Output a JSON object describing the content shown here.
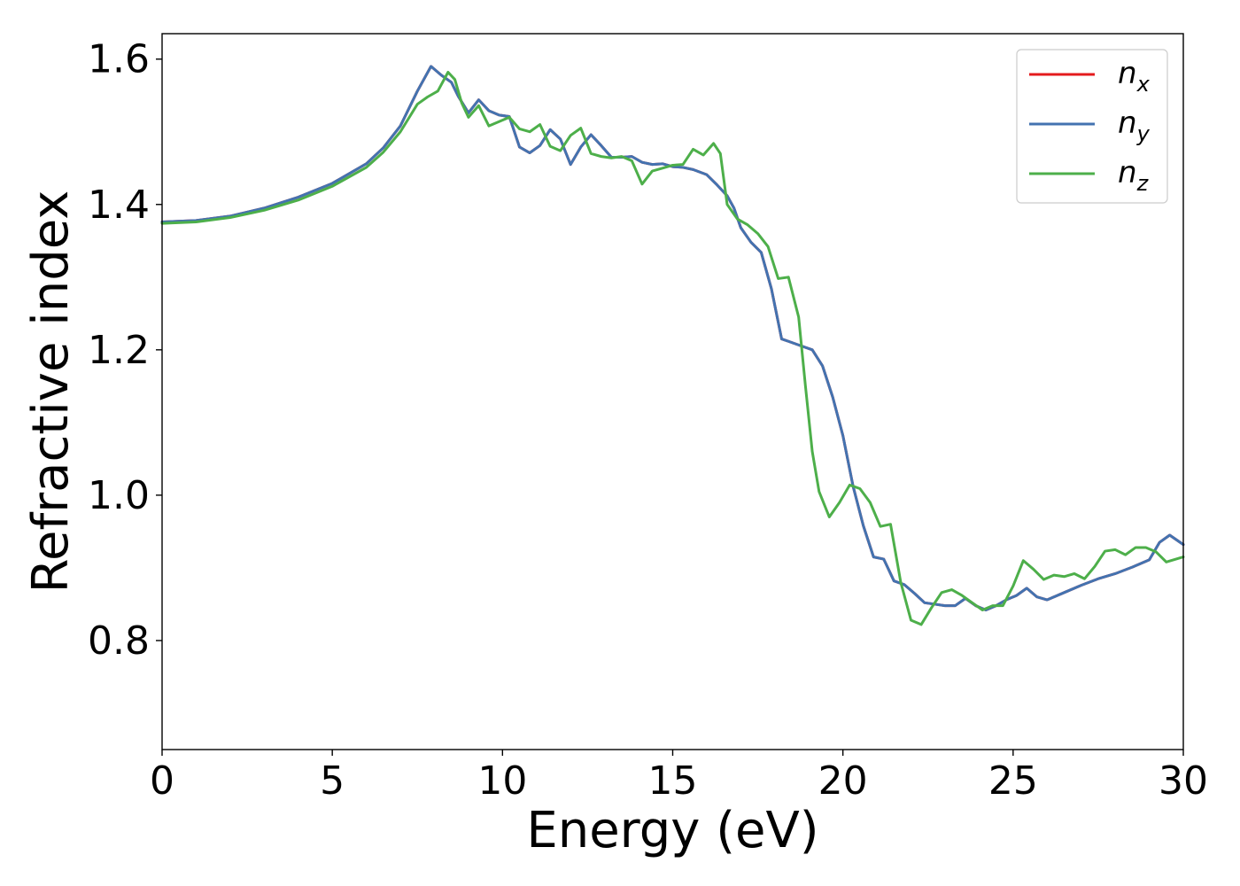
{
  "chart_data": {
    "type": "line",
    "title": "",
    "xlabel": "Energy (eV)",
    "ylabel": "Refractive index",
    "xlim": [
      0,
      30
    ],
    "ylim": [
      0.65,
      1.635
    ],
    "xticks": [
      0,
      5,
      10,
      15,
      20,
      25,
      30
    ],
    "yticks": [
      0.8,
      1.0,
      1.2,
      1.4,
      1.6
    ],
    "xtick_labels": [
      "0",
      "5",
      "10",
      "15",
      "20",
      "25",
      "30"
    ],
    "ytick_labels": [
      "0.8",
      "1.0",
      "1.2",
      "1.4",
      "1.6"
    ],
    "grid": false,
    "legend_position": "top-right",
    "series": [
      {
        "name": "n_x",
        "legend_base": "n",
        "legend_sub": "x",
        "color": "#e41a1c",
        "x": [
          0,
          1,
          2,
          3,
          4,
          5,
          6,
          6.5,
          7,
          7.5,
          7.9,
          8.2,
          8.5,
          8.7,
          9.0,
          9.3,
          9.6,
          9.9,
          10.2,
          10.5,
          10.8,
          11.1,
          11.4,
          11.7,
          12.0,
          12.3,
          12.6,
          12.9,
          13.2,
          13.5,
          13.8,
          14.1,
          14.4,
          14.7,
          15.0,
          15.3,
          15.6,
          16.0,
          16.3,
          16.6,
          16.8,
          17.0,
          17.3,
          17.6,
          17.9,
          18.2,
          18.5,
          18.8,
          19.1,
          19.4,
          19.7,
          20.0,
          20.3,
          20.6,
          20.9,
          21.2,
          21.5,
          21.8,
          22.1,
          22.4,
          22.7,
          23.0,
          23.3,
          23.6,
          23.9,
          24.2,
          24.5,
          24.8,
          25.1,
          25.4,
          25.7,
          26.0,
          26.5,
          27.0,
          27.5,
          28.0,
          28.5,
          29.0,
          29.3,
          29.6,
          30.0
        ],
        "y": [
          1.376,
          1.378,
          1.384,
          1.395,
          1.41,
          1.429,
          1.456,
          1.478,
          1.508,
          1.556,
          1.59,
          1.578,
          1.568,
          1.549,
          1.526,
          1.544,
          1.529,
          1.523,
          1.521,
          1.479,
          1.471,
          1.481,
          1.503,
          1.49,
          1.455,
          1.479,
          1.496,
          1.481,
          1.465,
          1.465,
          1.466,
          1.458,
          1.455,
          1.456,
          1.452,
          1.451,
          1.448,
          1.441,
          1.427,
          1.412,
          1.395,
          1.368,
          1.348,
          1.334,
          1.284,
          1.215,
          1.21,
          1.205,
          1.2,
          1.178,
          1.135,
          1.082,
          1.012,
          0.958,
          0.915,
          0.912,
          0.882,
          0.877,
          0.865,
          0.852,
          0.85,
          0.848,
          0.848,
          0.858,
          0.848,
          0.842,
          0.848,
          0.856,
          0.862,
          0.872,
          0.86,
          0.856,
          0.866,
          0.876,
          0.885,
          0.892,
          0.901,
          0.911,
          0.935,
          0.945,
          0.932
        ]
      },
      {
        "name": "n_y",
        "legend_base": "n",
        "legend_sub": "y",
        "color": "#4373b0",
        "x": [
          0,
          1,
          2,
          3,
          4,
          5,
          6,
          6.5,
          7,
          7.5,
          7.9,
          8.2,
          8.5,
          8.7,
          9.0,
          9.3,
          9.6,
          9.9,
          10.2,
          10.5,
          10.8,
          11.1,
          11.4,
          11.7,
          12.0,
          12.3,
          12.6,
          12.9,
          13.2,
          13.5,
          13.8,
          14.1,
          14.4,
          14.7,
          15.0,
          15.3,
          15.6,
          16.0,
          16.3,
          16.6,
          16.8,
          17.0,
          17.3,
          17.6,
          17.9,
          18.2,
          18.5,
          18.8,
          19.1,
          19.4,
          19.7,
          20.0,
          20.3,
          20.6,
          20.9,
          21.2,
          21.5,
          21.8,
          22.1,
          22.4,
          22.7,
          23.0,
          23.3,
          23.6,
          23.9,
          24.2,
          24.5,
          24.8,
          25.1,
          25.4,
          25.7,
          26.0,
          26.5,
          27.0,
          27.5,
          28.0,
          28.5,
          29.0,
          29.3,
          29.6,
          30.0
        ],
        "y": [
          1.376,
          1.378,
          1.384,
          1.395,
          1.41,
          1.429,
          1.456,
          1.478,
          1.508,
          1.556,
          1.59,
          1.578,
          1.568,
          1.549,
          1.526,
          1.544,
          1.529,
          1.523,
          1.521,
          1.479,
          1.471,
          1.481,
          1.503,
          1.49,
          1.455,
          1.479,
          1.496,
          1.481,
          1.465,
          1.465,
          1.466,
          1.458,
          1.455,
          1.456,
          1.452,
          1.451,
          1.448,
          1.441,
          1.427,
          1.412,
          1.395,
          1.368,
          1.348,
          1.334,
          1.284,
          1.215,
          1.21,
          1.205,
          1.2,
          1.178,
          1.135,
          1.082,
          1.012,
          0.958,
          0.915,
          0.912,
          0.882,
          0.877,
          0.865,
          0.852,
          0.85,
          0.848,
          0.848,
          0.858,
          0.848,
          0.842,
          0.848,
          0.856,
          0.862,
          0.872,
          0.86,
          0.856,
          0.866,
          0.876,
          0.885,
          0.892,
          0.901,
          0.911,
          0.935,
          0.945,
          0.932
        ]
      },
      {
        "name": "n_z",
        "legend_base": "n",
        "legend_sub": "z",
        "color": "#4daf4a",
        "x": [
          0,
          1,
          2,
          3,
          4,
          5,
          6,
          6.5,
          7,
          7.5,
          7.8,
          8.1,
          8.4,
          8.6,
          8.8,
          9.0,
          9.3,
          9.6,
          9.9,
          10.2,
          10.5,
          10.8,
          11.1,
          11.4,
          11.7,
          12.0,
          12.3,
          12.6,
          12.9,
          13.2,
          13.5,
          13.8,
          14.1,
          14.4,
          14.7,
          15.0,
          15.3,
          15.6,
          15.9,
          16.2,
          16.4,
          16.6,
          16.9,
          17.2,
          17.5,
          17.8,
          18.1,
          18.4,
          18.7,
          18.9,
          19.1,
          19.3,
          19.6,
          19.9,
          20.2,
          20.5,
          20.8,
          21.1,
          21.4,
          21.7,
          22.0,
          22.3,
          22.6,
          22.9,
          23.2,
          23.5,
          23.8,
          24.1,
          24.4,
          24.7,
          25.0,
          25.3,
          25.6,
          25.9,
          26.2,
          26.5,
          26.8,
          27.1,
          27.4,
          27.7,
          28.0,
          28.3,
          28.6,
          28.9,
          29.2,
          29.5,
          30.0
        ],
        "y": [
          1.374,
          1.376,
          1.382,
          1.392,
          1.406,
          1.425,
          1.451,
          1.472,
          1.5,
          1.538,
          1.548,
          1.556,
          1.582,
          1.572,
          1.54,
          1.52,
          1.536,
          1.508,
          1.514,
          1.52,
          1.504,
          1.5,
          1.51,
          1.48,
          1.474,
          1.495,
          1.505,
          1.47,
          1.466,
          1.464,
          1.466,
          1.46,
          1.428,
          1.446,
          1.45,
          1.454,
          1.455,
          1.476,
          1.468,
          1.484,
          1.47,
          1.4,
          1.38,
          1.372,
          1.36,
          1.342,
          1.298,
          1.3,
          1.245,
          1.15,
          1.06,
          1.005,
          0.97,
          0.99,
          1.014,
          1.009,
          0.99,
          0.957,
          0.96,
          0.88,
          0.828,
          0.822,
          0.845,
          0.866,
          0.87,
          0.862,
          0.852,
          0.842,
          0.848,
          0.848,
          0.875,
          0.91,
          0.898,
          0.884,
          0.89,
          0.888,
          0.892,
          0.885,
          0.902,
          0.923,
          0.925,
          0.918,
          0.928,
          0.928,
          0.922,
          0.908,
          0.915
        ]
      }
    ]
  }
}
